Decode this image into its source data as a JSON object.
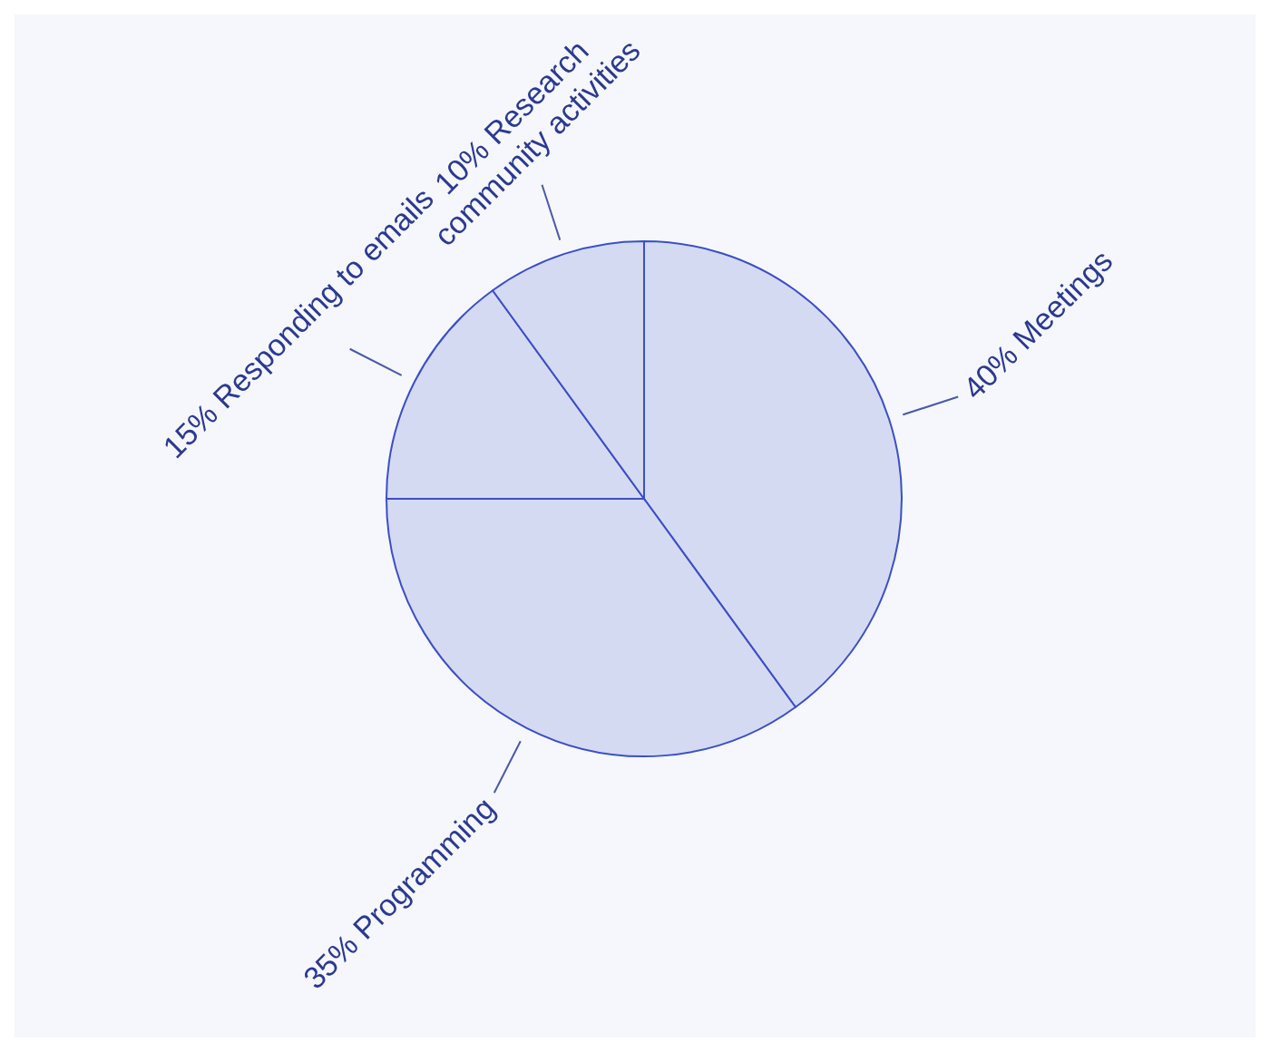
{
  "chart_data": {
    "type": "pie",
    "categories": [
      "Meetings",
      "Programming",
      "Responding to emails",
      "Research community activities"
    ],
    "values": [
      40,
      35,
      15,
      10
    ],
    "value_labels": [
      "40%",
      "35%",
      "15%",
      "10%"
    ],
    "colors": [
      "#d5daf3",
      "#d5daf3",
      "#d5daf3",
      "#d5daf3"
    ],
    "legend": false
  }
}
